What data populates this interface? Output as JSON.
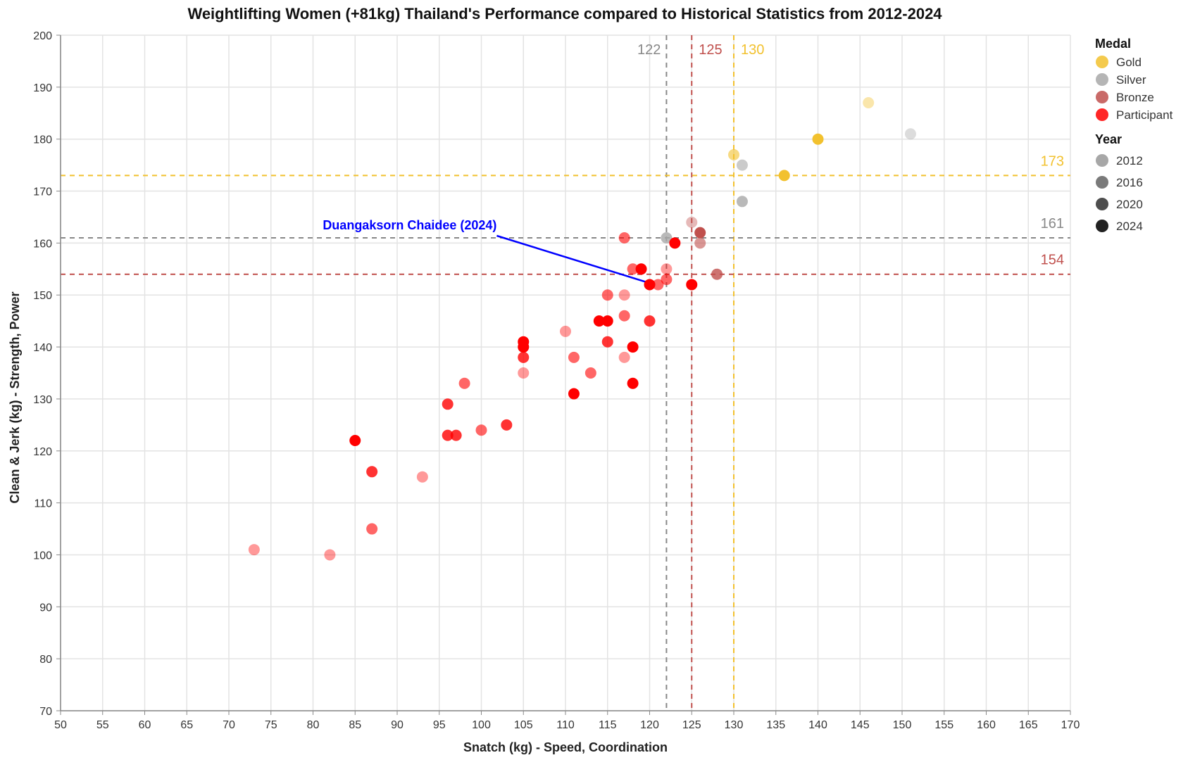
{
  "chart_data": {
    "type": "scatter",
    "title": "Weightlifting Women (+81kg) Thailand's Performance compared to Historical Statistics from 2012-2024",
    "xlabel": "Snatch (kg) - Speed, Coordination",
    "ylabel": "Clean & Jerk (kg) - Strength, Power",
    "xlim": [
      50,
      170
    ],
    "ylim": [
      70,
      200
    ],
    "x_ticks": [
      50,
      55,
      60,
      65,
      70,
      75,
      80,
      85,
      90,
      95,
      100,
      105,
      110,
      115,
      120,
      125,
      130,
      135,
      140,
      145,
      150,
      155,
      160,
      165,
      170
    ],
    "y_ticks": [
      70,
      80,
      90,
      100,
      110,
      120,
      130,
      140,
      150,
      160,
      170,
      180,
      190,
      200
    ],
    "grid": true,
    "legend_position": "right",
    "legend": {
      "medal": {
        "title": "Medal",
        "items": [
          {
            "label": "Gold",
            "color": "#f2c12e"
          },
          {
            "label": "Silver",
            "color": "#a8a8a8"
          },
          {
            "label": "Bronze",
            "color": "#c0504d"
          },
          {
            "label": "Participant",
            "color": "#ff0000"
          }
        ]
      },
      "year": {
        "title": "Year",
        "items": [
          {
            "label": "2012",
            "opacity": 0.4
          },
          {
            "label": "2016",
            "opacity": 0.6
          },
          {
            "label": "2020",
            "opacity": 0.8
          },
          {
            "label": "2024",
            "opacity": 1.0
          }
        ]
      }
    },
    "reference_lines": {
      "vertical": [
        {
          "value": 122,
          "label": "122",
          "color": "#888888"
        },
        {
          "value": 125,
          "label": "125",
          "color": "#c0504d"
        },
        {
          "value": 130,
          "label": "130",
          "color": "#f2c12e"
        }
      ],
      "horizontal": [
        {
          "value": 173,
          "label": "173",
          "color": "#f2c12e"
        },
        {
          "value": 161,
          "label": "161",
          "color": "#888888"
        },
        {
          "value": 154,
          "label": "154",
          "color": "#c0504d"
        }
      ]
    },
    "annotation": {
      "text": "Duangaksorn Chaidee (2024)",
      "x": 120,
      "y": 152,
      "color": "#0000ff"
    },
    "points": [
      {
        "x": 146,
        "y": 187,
        "medal": "Gold",
        "year": "2012"
      },
      {
        "x": 140,
        "y": 180,
        "medal": "Gold",
        "year": "2024"
      },
      {
        "x": 130,
        "y": 177,
        "medal": "Gold",
        "year": "2016"
      },
      {
        "x": 136,
        "y": 173,
        "medal": "Gold",
        "year": "2024"
      },
      {
        "x": 151,
        "y": 181,
        "medal": "Silver",
        "year": "2012"
      },
      {
        "x": 131,
        "y": 175,
        "medal": "Silver",
        "year": "2016"
      },
      {
        "x": 131,
        "y": 168,
        "medal": "Silver",
        "year": "2020"
      },
      {
        "x": 122,
        "y": 161,
        "medal": "Silver",
        "year": "2020"
      },
      {
        "x": 125,
        "y": 164,
        "medal": "Bronze",
        "year": "2012"
      },
      {
        "x": 126,
        "y": 162,
        "medal": "Bronze",
        "year": "2024"
      },
      {
        "x": 126,
        "y": 160,
        "medal": "Bronze",
        "year": "2016"
      },
      {
        "x": 128,
        "y": 154,
        "medal": "Bronze",
        "year": "2020"
      },
      {
        "x": 117,
        "y": 161,
        "medal": "Participant",
        "year": "2016"
      },
      {
        "x": 123,
        "y": 160,
        "medal": "Participant",
        "year": "2024"
      },
      {
        "x": 118,
        "y": 155,
        "medal": "Participant",
        "year": "2016"
      },
      {
        "x": 119,
        "y": 155,
        "medal": "Participant",
        "year": "2024"
      },
      {
        "x": 122,
        "y": 155,
        "medal": "Participant",
        "year": "2012"
      },
      {
        "x": 122,
        "y": 153,
        "medal": "Participant",
        "year": "2016"
      },
      {
        "x": 121,
        "y": 152,
        "medal": "Participant",
        "year": "2016"
      },
      {
        "x": 120,
        "y": 152,
        "medal": "Participant",
        "year": "2024"
      },
      {
        "x": 125,
        "y": 152,
        "medal": "Participant",
        "year": "2024"
      },
      {
        "x": 115,
        "y": 150,
        "medal": "Participant",
        "year": "2016"
      },
      {
        "x": 117,
        "y": 150,
        "medal": "Participant",
        "year": "2012"
      },
      {
        "x": 117,
        "y": 146,
        "medal": "Participant",
        "year": "2016"
      },
      {
        "x": 114,
        "y": 145,
        "medal": "Participant",
        "year": "2024"
      },
      {
        "x": 115,
        "y": 145,
        "medal": "Participant",
        "year": "2024"
      },
      {
        "x": 120,
        "y": 145,
        "medal": "Participant",
        "year": "2020"
      },
      {
        "x": 110,
        "y": 143,
        "medal": "Participant",
        "year": "2012"
      },
      {
        "x": 105,
        "y": 141,
        "medal": "Participant",
        "year": "2024"
      },
      {
        "x": 115,
        "y": 141,
        "medal": "Participant",
        "year": "2020"
      },
      {
        "x": 105,
        "y": 140,
        "medal": "Participant",
        "year": "2024"
      },
      {
        "x": 118,
        "y": 140,
        "medal": "Participant",
        "year": "2024"
      },
      {
        "x": 105,
        "y": 138,
        "medal": "Participant",
        "year": "2020"
      },
      {
        "x": 111,
        "y": 138,
        "medal": "Participant",
        "year": "2016"
      },
      {
        "x": 117,
        "y": 138,
        "medal": "Participant",
        "year": "2012"
      },
      {
        "x": 105,
        "y": 135,
        "medal": "Participant",
        "year": "2012"
      },
      {
        "x": 113,
        "y": 135,
        "medal": "Participant",
        "year": "2016"
      },
      {
        "x": 98,
        "y": 133,
        "medal": "Participant",
        "year": "2016"
      },
      {
        "x": 118,
        "y": 133,
        "medal": "Participant",
        "year": "2024"
      },
      {
        "x": 111,
        "y": 131,
        "medal": "Participant",
        "year": "2024"
      },
      {
        "x": 96,
        "y": 129,
        "medal": "Participant",
        "year": "2020"
      },
      {
        "x": 103,
        "y": 125,
        "medal": "Participant",
        "year": "2020"
      },
      {
        "x": 100,
        "y": 124,
        "medal": "Participant",
        "year": "2016"
      },
      {
        "x": 96,
        "y": 123,
        "medal": "Participant",
        "year": "2020"
      },
      {
        "x": 97,
        "y": 123,
        "medal": "Participant",
        "year": "2020"
      },
      {
        "x": 85,
        "y": 122,
        "medal": "Participant",
        "year": "2024"
      },
      {
        "x": 87,
        "y": 116,
        "medal": "Participant",
        "year": "2020"
      },
      {
        "x": 93,
        "y": 115,
        "medal": "Participant",
        "year": "2012"
      },
      {
        "x": 87,
        "y": 105,
        "medal": "Participant",
        "year": "2016"
      },
      {
        "x": 73,
        "y": 101,
        "medal": "Participant",
        "year": "2012"
      },
      {
        "x": 82,
        "y": 100,
        "medal": "Participant",
        "year": "2012"
      }
    ]
  }
}
